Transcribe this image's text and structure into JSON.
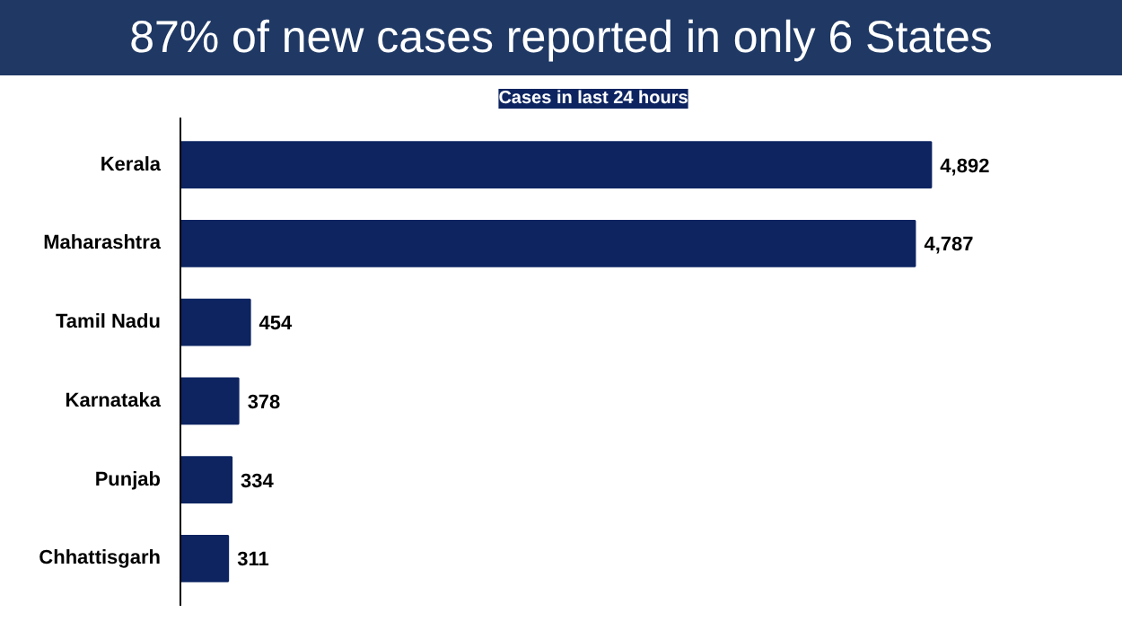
{
  "chart_data": {
    "type": "bar",
    "orientation": "horizontal",
    "title": "87% of new cases reported in only 6 States",
    "subtitle": "Cases in last 24 hours",
    "categories": [
      "Kerala",
      "Maharashtra",
      "Tamil Nadu",
      "Karnataka",
      "Punjab",
      "Chhattisgarh"
    ],
    "values": [
      4892,
      4787,
      454,
      378,
      334,
      311
    ],
    "color": "#0d2461",
    "value_labels": [
      "4,892",
      "4,787",
      "454",
      "378",
      "334",
      "311"
    ]
  }
}
